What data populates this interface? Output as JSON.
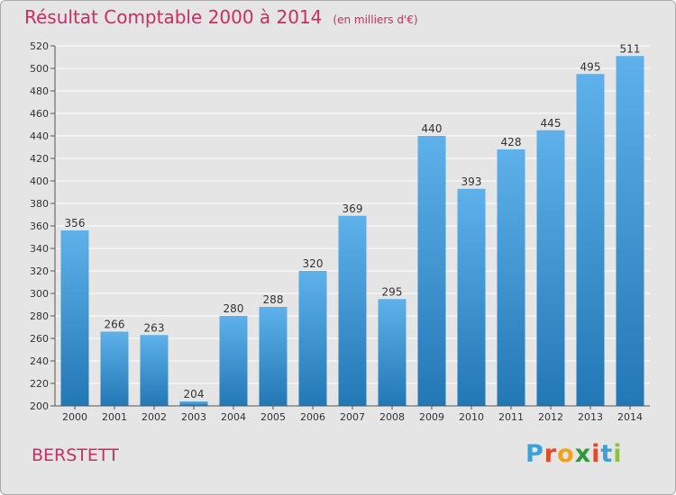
{
  "title": "Résultat Comptable 2000 à 2014",
  "subtitle": "(en milliers d'€)",
  "commune": "BERSTETT",
  "logo": {
    "letters": [
      "P",
      "r",
      "o",
      "x",
      "i",
      "t",
      "i"
    ],
    "colors": [
      "#3aa0d8",
      "#e24a2a",
      "#f0a21c",
      "#2c9a3a",
      "#e24a2a",
      "#3aa0d8",
      "#8bc53f"
    ]
  },
  "colors": {
    "bar_light": "#5eb1ea",
    "bar_dark": "#2278b5",
    "title": "#cc2c63",
    "background": "#e5e5e5",
    "grid": "#ffffff"
  },
  "chart_data": {
    "type": "bar",
    "categories": [
      "2000",
      "2001",
      "2002",
      "2003",
      "2004",
      "2005",
      "2006",
      "2007",
      "2008",
      "2009",
      "2010",
      "2011",
      "2012",
      "2013",
      "2014"
    ],
    "values": [
      356,
      266,
      263,
      204,
      280,
      288,
      320,
      369,
      295,
      440,
      393,
      428,
      445,
      495,
      511
    ],
    "title": "Résultat Comptable 2000 à 2014",
    "subtitle": "(en milliers d'€)",
    "xlabel": "",
    "ylabel": "",
    "ylim": [
      200,
      520
    ],
    "yticks": [
      200,
      220,
      240,
      260,
      280,
      300,
      320,
      340,
      360,
      380,
      400,
      420,
      440,
      460,
      480,
      500,
      520
    ],
    "grid": true,
    "data_labels": true
  }
}
